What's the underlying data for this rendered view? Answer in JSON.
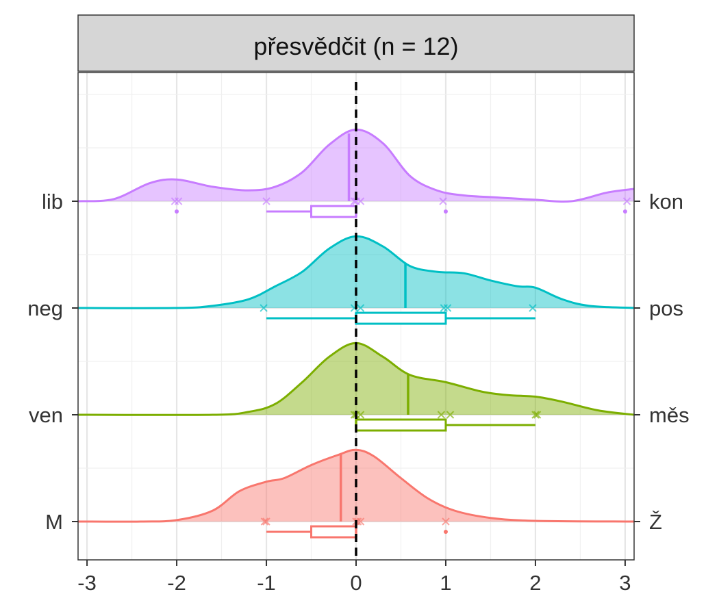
{
  "chart_data": {
    "type": "ridgeline",
    "title": "přesvědčit (n = 12)",
    "xlim": [
      -3.1,
      3.1
    ],
    "x_ticks": [
      -3,
      -2,
      -1,
      0,
      1,
      2,
      3
    ],
    "x_tick_labels": [
      "-3",
      "-2",
      "-1",
      "0",
      "1",
      "2",
      "3"
    ],
    "reference_line_x": 0,
    "grid": true,
    "series": [
      {
        "left_label": "M",
        "right_label": "Ž",
        "color": "#F8766D",
        "fill": "#F8766D",
        "density": [
          [
            -3.1,
            0
          ],
          [
            -2.4,
            0.0
          ],
          [
            -2.0,
            0.02
          ],
          [
            -1.6,
            0.15
          ],
          [
            -1.3,
            0.42
          ],
          [
            -1.0,
            0.55
          ],
          [
            -0.8,
            0.6
          ],
          [
            -0.5,
            0.78
          ],
          [
            -0.2,
            0.92
          ],
          [
            0.0,
            0.99
          ],
          [
            0.2,
            0.9
          ],
          [
            0.5,
            0.6
          ],
          [
            0.8,
            0.32
          ],
          [
            1.1,
            0.15
          ],
          [
            1.5,
            0.05
          ],
          [
            2.0,
            0.01
          ],
          [
            3.1,
            0
          ]
        ],
        "points": [
          -1.02,
          -1.0,
          0.0,
          0.02,
          0.05,
          1.0
        ],
        "mean": -0.17,
        "box": {
          "lower_whisker": -1,
          "q1": -0.5,
          "median": 0,
          "q3": 0,
          "upper_whisker": 0
        },
        "outliers": [
          1
        ]
      },
      {
        "left_label": "ven",
        "right_label": "měs",
        "color": "#7CAE00",
        "fill": "#7CAE00",
        "density": [
          [
            -3.1,
            0
          ],
          [
            -1.6,
            0.0
          ],
          [
            -1.2,
            0.04
          ],
          [
            -0.9,
            0.15
          ],
          [
            -0.6,
            0.45
          ],
          [
            -0.3,
            0.8
          ],
          [
            0.0,
            0.99
          ],
          [
            0.3,
            0.8
          ],
          [
            0.6,
            0.55
          ],
          [
            1.0,
            0.45
          ],
          [
            1.4,
            0.32
          ],
          [
            1.7,
            0.27
          ],
          [
            2.0,
            0.25
          ],
          [
            2.3,
            0.18
          ],
          [
            2.7,
            0.06
          ],
          [
            3.1,
            0.0
          ]
        ],
        "points": [
          -0.02,
          0.0,
          0.05,
          0.95,
          1.05,
          2.0,
          2.02
        ],
        "mean": 0.58,
        "box": {
          "lower_whisker": 0,
          "q1": 0,
          "median": 0,
          "q3": 1,
          "upper_whisker": 2
        },
        "outliers": []
      },
      {
        "left_label": "neg",
        "right_label": "pos",
        "color": "#00BFC4",
        "fill": "#00BFC4",
        "density": [
          [
            -3.1,
            0
          ],
          [
            -2.0,
            0.0
          ],
          [
            -1.6,
            0.03
          ],
          [
            -1.2,
            0.12
          ],
          [
            -0.9,
            0.3
          ],
          [
            -0.6,
            0.5
          ],
          [
            -0.3,
            0.82
          ],
          [
            0.0,
            0.99
          ],
          [
            0.3,
            0.85
          ],
          [
            0.6,
            0.58
          ],
          [
            0.9,
            0.5
          ],
          [
            1.2,
            0.48
          ],
          [
            1.5,
            0.38
          ],
          [
            1.8,
            0.3
          ],
          [
            2.0,
            0.28
          ],
          [
            2.3,
            0.12
          ],
          [
            2.6,
            0.03
          ],
          [
            3.1,
            0
          ]
        ],
        "points": [
          -1.03,
          -0.02,
          0.05,
          0.98,
          1.02,
          1.97
        ],
        "mean": 0.55,
        "box": {
          "lower_whisker": -1,
          "q1": 0,
          "median": 0,
          "q3": 1,
          "upper_whisker": 2
        },
        "outliers": []
      },
      {
        "left_label": "lib",
        "right_label": "kon",
        "color": "#C77CFF",
        "fill": "#C77CFF",
        "density": [
          [
            -3.1,
            0
          ],
          [
            -2.7,
            0.03
          ],
          [
            -2.3,
            0.25
          ],
          [
            -2.0,
            0.3
          ],
          [
            -1.6,
            0.2
          ],
          [
            -1.2,
            0.15
          ],
          [
            -0.9,
            0.2
          ],
          [
            -0.6,
            0.4
          ],
          [
            -0.3,
            0.78
          ],
          [
            0.0,
            0.99
          ],
          [
            0.3,
            0.8
          ],
          [
            0.6,
            0.35
          ],
          [
            0.9,
            0.15
          ],
          [
            1.2,
            0.08
          ],
          [
            1.6,
            0.05
          ],
          [
            2.0,
            0.02
          ],
          [
            2.4,
            0.0
          ],
          [
            2.8,
            0.12
          ],
          [
            3.1,
            0.17
          ]
        ],
        "points": [
          -2.02,
          -1.98,
          -1.0,
          -0.02,
          0.0,
          0.05,
          0.97,
          3.02
        ],
        "mean": -0.08,
        "box": {
          "lower_whisker": -1,
          "q1": -0.5,
          "median": 0,
          "q3": 0,
          "upper_whisker": 0
        },
        "outliers": [
          -2,
          1,
          3
        ]
      }
    ]
  }
}
